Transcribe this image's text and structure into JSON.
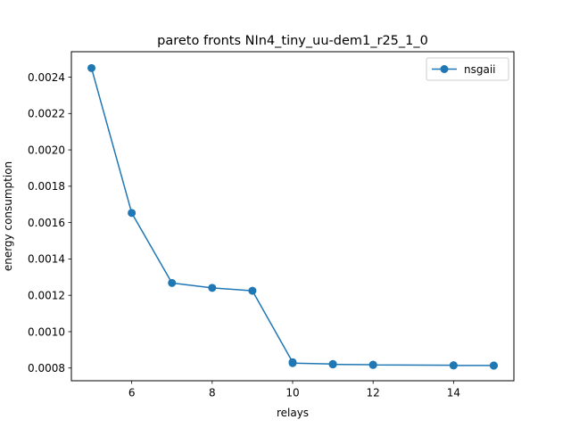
{
  "chart_data": {
    "type": "line",
    "title": "pareto fronts NIn4_tiny_uu-dem1_r25_1_0",
    "xlabel": "relays",
    "ylabel": "energy consumption",
    "xlim": [
      4.5,
      15.5
    ],
    "ylim": [
      0.00073,
      0.00254
    ],
    "xticks": [
      6,
      8,
      10,
      12,
      14
    ],
    "xtick_labels": [
      "6",
      "8",
      "10",
      "12",
      "14"
    ],
    "yticks": [
      0.0008,
      0.001,
      0.0012,
      0.0014,
      0.0016,
      0.0018,
      0.002,
      0.0022,
      0.0024
    ],
    "ytick_labels": [
      "0.0008",
      "0.0010",
      "0.0012",
      "0.0014",
      "0.0016",
      "0.0018",
      "0.0020",
      "0.0022",
      "0.0024"
    ],
    "grid": false,
    "legend_position": "top-right",
    "series": [
      {
        "name": "nsgaii",
        "color": "#1f77b4",
        "marker": "circle",
        "x": [
          5,
          6,
          7,
          8,
          9,
          10,
          10,
          11,
          11,
          12,
          12,
          14,
          14,
          15,
          15
        ],
        "y": [
          0.00245,
          0.001653,
          0.001268,
          0.001241,
          0.001225,
          0.000832,
          0.000827,
          0.000822,
          0.00082,
          0.000818,
          0.000817,
          0.000815,
          0.000814,
          0.000814,
          0.000813
        ]
      }
    ]
  }
}
